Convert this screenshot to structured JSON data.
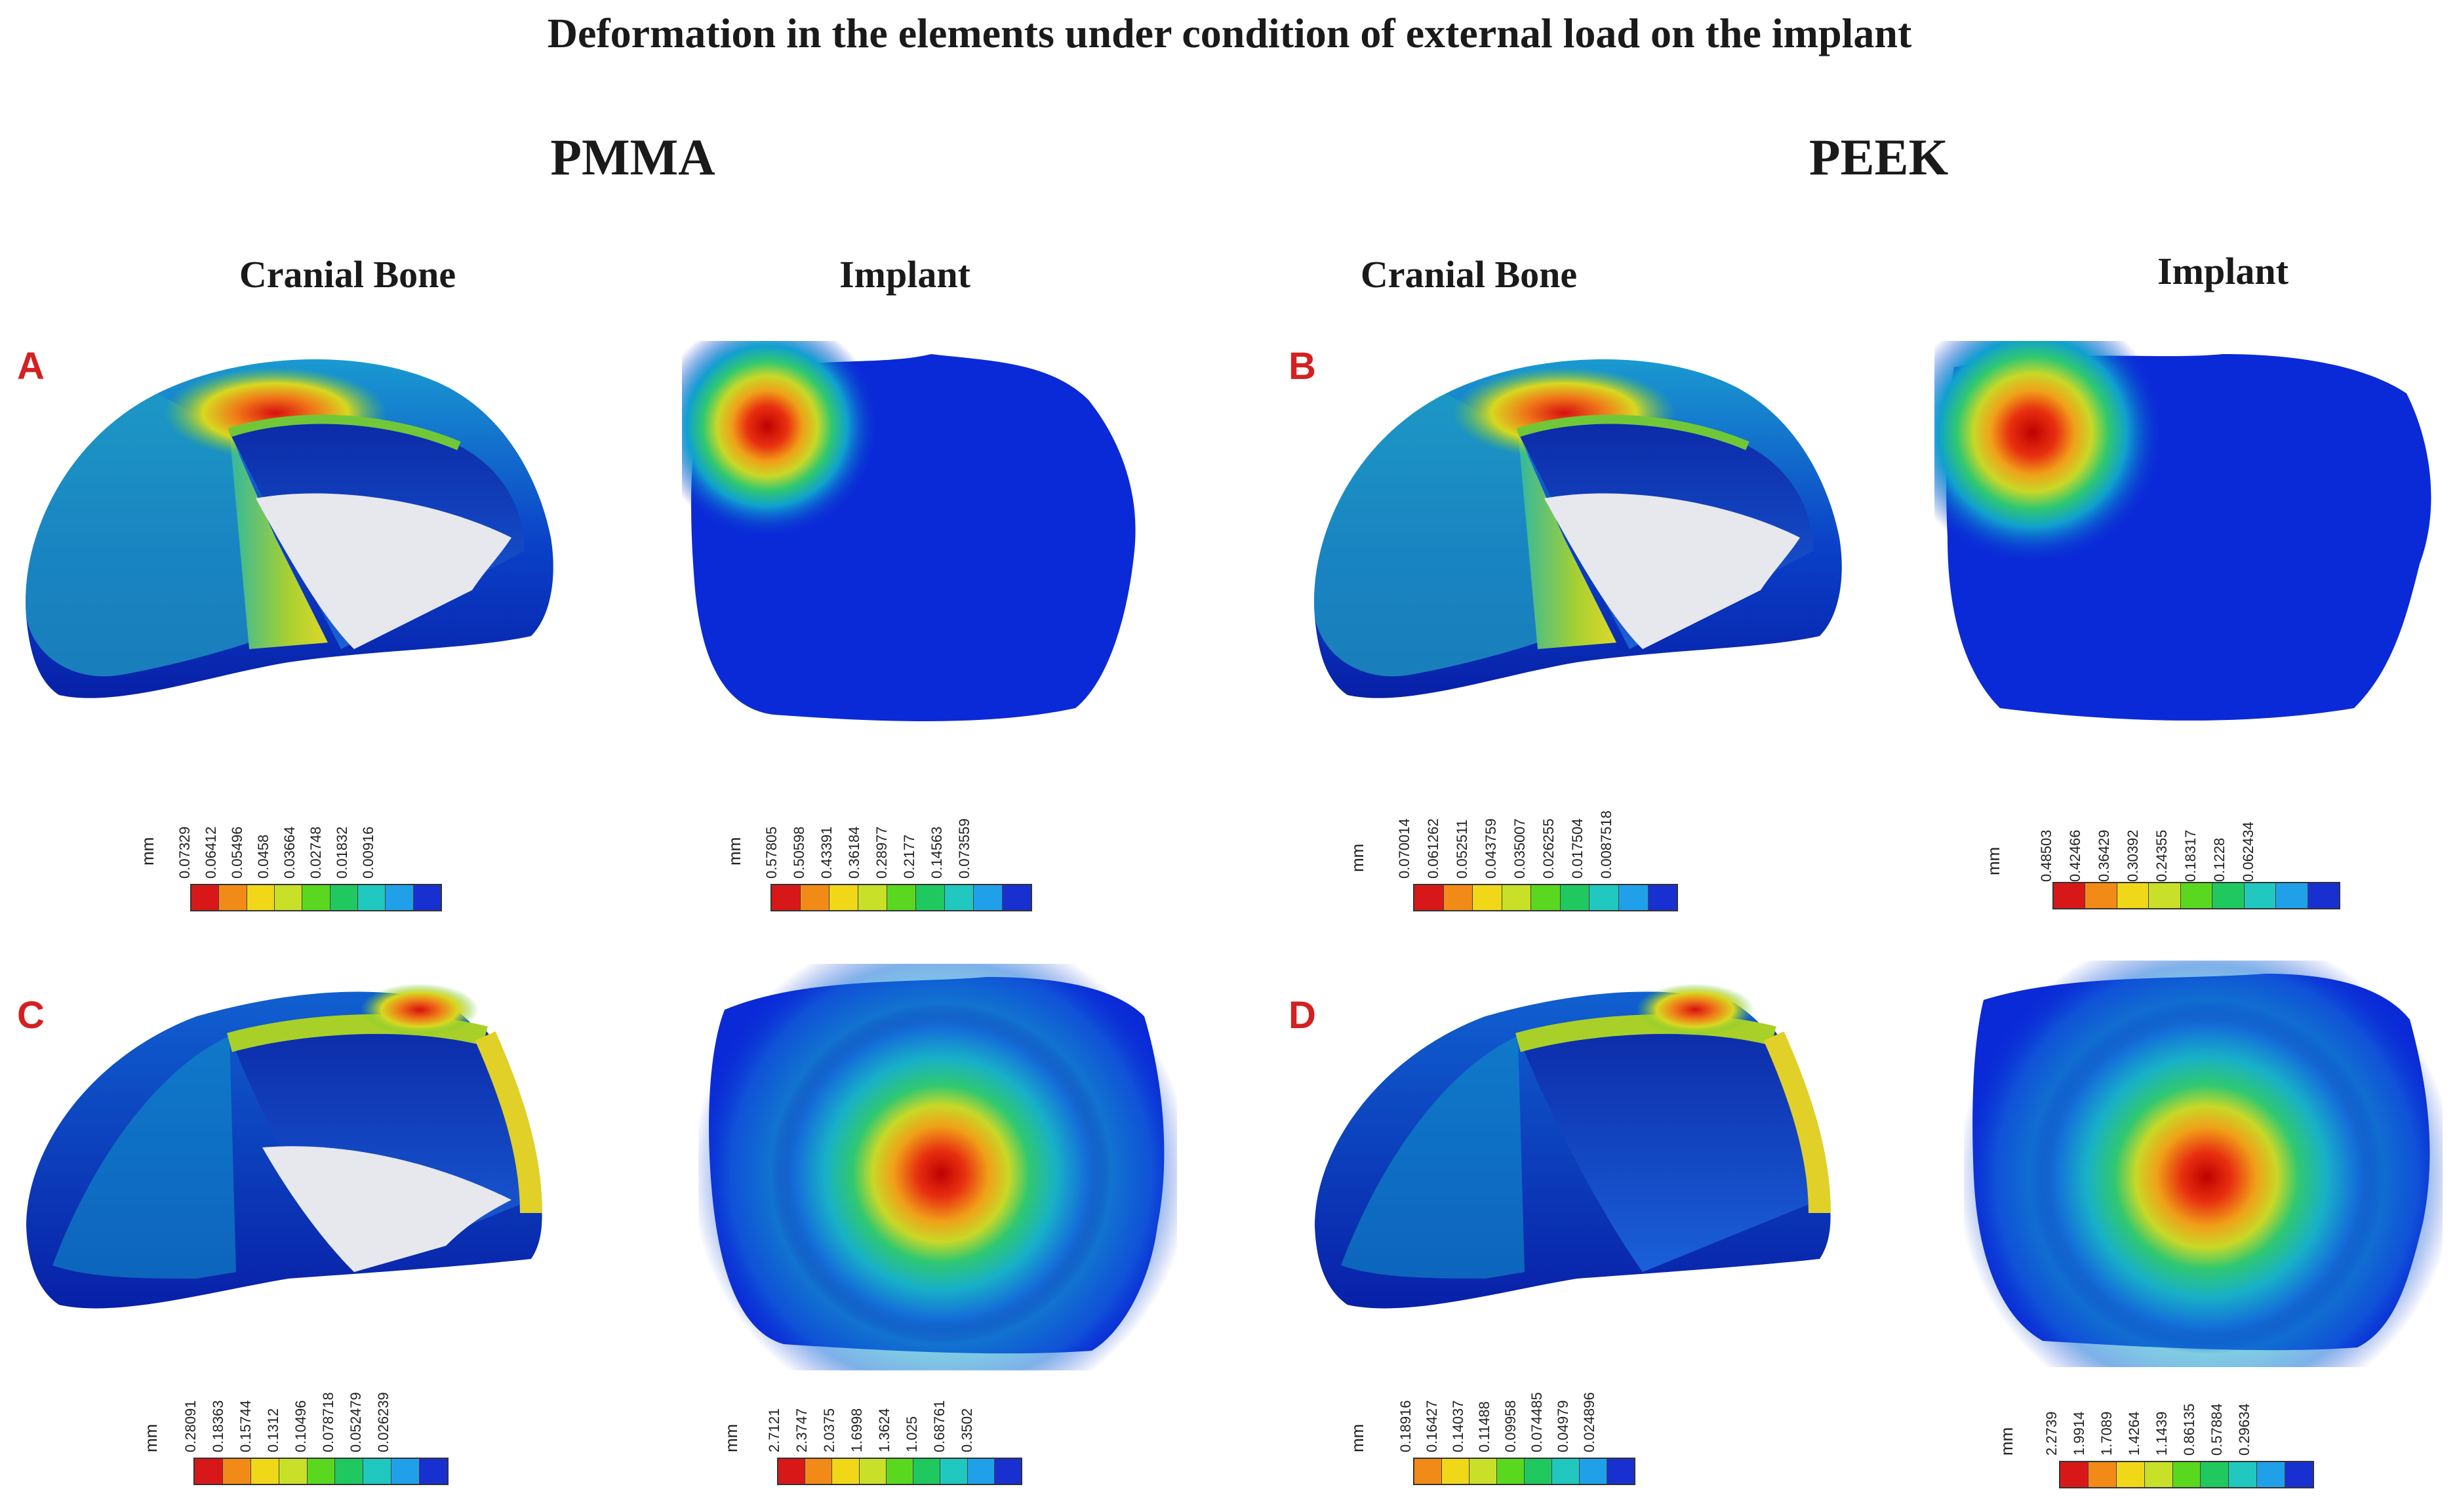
{
  "title": "Deformation in the elements under condition of external load on the implant",
  "groups": [
    "PMMA",
    "PEEK"
  ],
  "columns": {
    "pmma_bone": "Cranial Bone",
    "pmma_implant": "Implant",
    "peek_bone": "Cranial Bone",
    "peek_implant": "Implant"
  },
  "panel_labels": [
    "A",
    "B",
    "C",
    "D"
  ],
  "legend_unit": "mm",
  "legend_colors": [
    "#d81818",
    "#f28a18",
    "#f0d818",
    "#c8e028",
    "#5ad820",
    "#20c860",
    "#20c8c0",
    "#20a0e8",
    "#1830d0"
  ],
  "legend_colors_short": [
    "#f28a18",
    "#f0d818",
    "#c8e028",
    "#5ad820",
    "#20c860",
    "#20c8c0",
    "#20a0e8",
    "#1830d0"
  ],
  "legends": {
    "A_bone": [
      "0.07329",
      "0.06412",
      "0.05496",
      "0.0458",
      "0.03664",
      "0.02748",
      "0.01832",
      "0.00916"
    ],
    "A_implant": [
      "0.57805",
      "0.50598",
      "0.43391",
      "0.36184",
      "0.28977",
      "0.2177",
      "0.14563",
      "0.073559"
    ],
    "B_bone": [
      "0.070014",
      "0.061262",
      "0.052511",
      "0.043759",
      "0.035007",
      "0.026255",
      "0.017504",
      "0.0087518"
    ],
    "B_implant": [
      "0.48503",
      "0.42466",
      "0.36429",
      "0.30392",
      "0.24355",
      "0.18317",
      "0.1228",
      "0.062434"
    ],
    "C_bone": [
      "0.28091",
      "0.18363",
      "0.15744",
      "0.1312",
      "0.10496",
      "0.078718",
      "0.052479",
      "0.026239"
    ],
    "C_implant": [
      "2.7121",
      "2.3747",
      "2.0375",
      "1.6998",
      "1.3624",
      "1.025",
      "0.68761",
      "0.3502"
    ],
    "D_bone": [
      "0.18916",
      "0.16427",
      "0.14037",
      "0.11488",
      "0.09958",
      "0.074485",
      "0.04979",
      "0.024896"
    ],
    "D_implant": [
      "2.2739",
      "1.9914",
      "1.7089",
      "1.4264",
      "1.1439",
      "0.86135",
      "0.57884",
      "0.29634"
    ]
  }
}
